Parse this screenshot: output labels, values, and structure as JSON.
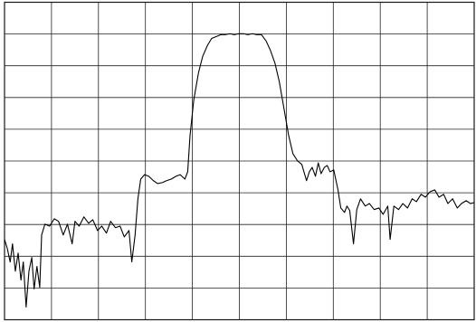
{
  "chart_data": {
    "type": "line",
    "x": [
      0,
      0.6,
      1.2,
      1.7,
      2.3,
      2.9,
      3.5,
      4.0,
      4.6,
      5.2,
      5.8,
      6.3,
      6.9,
      7.5,
      7.9,
      8.6,
      9.6,
      10.6,
      11.5,
      12.5,
      13.4,
      14.4,
      15.0,
      15.9,
      16.9,
      17.9,
      18.8,
      19.8,
      20.7,
      21.7,
      22.6,
      23.6,
      24.6,
      25.5,
      26.5,
      27.1,
      27.8,
      28.4,
      29.0,
      29.8,
      30.7,
      31.7,
      32.6,
      33.6,
      34.5,
      35.5,
      36.5,
      37.4,
      38.4,
      39.0,
      39.5,
      40.3,
      41.3,
      42.2,
      43.2,
      44.1,
      45.1,
      46.1,
      47.0,
      48.0,
      48.9,
      49.9,
      50.9,
      51.8,
      52.8,
      53.7,
      54.7,
      55.7,
      56.6,
      57.6,
      58.5,
      59.5,
      60.5,
      61.4,
      62.4,
      63.3,
      64.3,
      64.9,
      65.5,
      66.2,
      66.8,
      67.4,
      68.1,
      68.7,
      69.3,
      70.1,
      71.0,
      71.6,
      72.4,
      72.9,
      73.5,
      74.3,
      75.0,
      75.8,
      76.8,
      77.7,
      78.7,
      79.7,
      80.6,
      81.6,
      82.1,
      82.9,
      83.9,
      84.8,
      85.8,
      86.8,
      87.7,
      88.7,
      89.6,
      90.6,
      91.6,
      92.5,
      93.5,
      94.4,
      95.4,
      96.4,
      97.3,
      98.3,
      99.2,
      100
    ],
    "series": [
      {
        "color": "#000000",
        "values": [
          25.3,
          22.4,
          18.2,
          23.9,
          15.3,
          21.0,
          12.5,
          18.2,
          4.0,
          15.3,
          19.6,
          9.7,
          16.8,
          10.2,
          26.7,
          30.1,
          29.5,
          31.8,
          31.0,
          26.7,
          30.1,
          23.9,
          31.0,
          29.5,
          32.4,
          30.4,
          31.5,
          28.1,
          29.5,
          27.3,
          31.0,
          29.0,
          29.5,
          26.1,
          28.1,
          18.2,
          26.7,
          38.1,
          44.3,
          45.7,
          45.2,
          43.8,
          42.9,
          43.2,
          43.8,
          44.3,
          45.2,
          45.7,
          44.3,
          46.6,
          58.0,
          69.3,
          77.8,
          83.0,
          86.4,
          88.6,
          89.2,
          89.8,
          89.8,
          90.1,
          89.8,
          90.1,
          90.1,
          89.8,
          90.1,
          89.8,
          89.8,
          87.8,
          84.9,
          80.7,
          75.0,
          66.5,
          58.0,
          52.3,
          50.0,
          48.9,
          43.8,
          46.6,
          48.0,
          45.2,
          49.4,
          46.0,
          48.0,
          48.6,
          46.6,
          47.2,
          40.9,
          35.2,
          33.8,
          35.8,
          34.4,
          23.9,
          34.7,
          38.1,
          35.8,
          36.6,
          34.7,
          35.2,
          33.2,
          35.8,
          25.3,
          35.8,
          34.7,
          36.6,
          35.2,
          38.1,
          37.2,
          39.5,
          38.6,
          40.3,
          40.9,
          38.6,
          39.5,
          36.6,
          38.1,
          35.2,
          36.6,
          37.5,
          36.6,
          36.9
        ]
      }
    ],
    "xlim": [
      0,
      100
    ],
    "xticks": [
      0,
      10,
      20,
      30,
      40,
      50,
      60,
      70,
      80,
      90,
      100
    ],
    "ylim": [
      0,
      100
    ],
    "yticks": [
      0,
      10,
      20,
      30,
      40,
      50,
      60,
      70,
      80,
      90,
      100
    ],
    "grid": true
  }
}
